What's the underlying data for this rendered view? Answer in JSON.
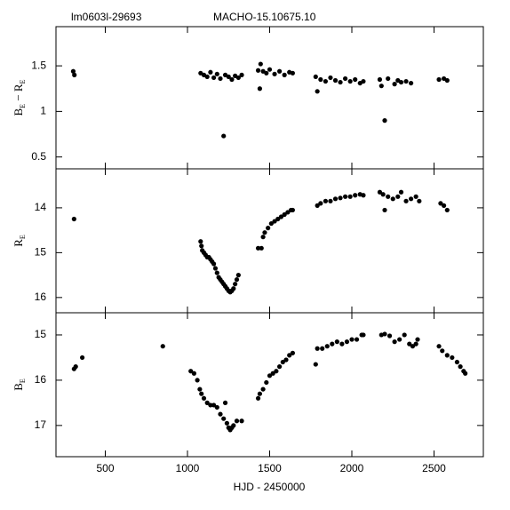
{
  "chart_data": [
    {
      "type": "scatter",
      "annotation": "lm0603l-29693",
      "title": "MACHO-15.10675.10",
      "ylabel": [
        "B",
        "E",
        " − R",
        "E"
      ],
      "xlim": [
        200,
        2800
      ],
      "xticks": [
        500,
        1000,
        1500,
        2000,
        2500
      ],
      "xtick_labels": false,
      "ylim": [
        0.37,
        1.93
      ],
      "yticks": [
        0.5,
        1,
        1.5
      ],
      "grid": false,
      "color": "#000000",
      "x": [
        305,
        312,
        1080,
        1100,
        1120,
        1140,
        1160,
        1180,
        1200,
        1220,
        1230,
        1250,
        1270,
        1290,
        1310,
        1330,
        1430,
        1440,
        1445,
        1460,
        1480,
        1500,
        1530,
        1560,
        1590,
        1620,
        1640,
        1780,
        1790,
        1810,
        1840,
        1870,
        1900,
        1930,
        1960,
        1990,
        2020,
        2050,
        2070,
        2170,
        2180,
        2200,
        2220,
        2260,
        2280,
        2300,
        2330,
        2360,
        2530,
        2560,
        2580
      ],
      "values": [
        1.44,
        1.4,
        1.42,
        1.4,
        1.38,
        1.43,
        1.37,
        1.41,
        1.36,
        0.73,
        1.4,
        1.38,
        1.35,
        1.39,
        1.37,
        1.4,
        1.45,
        1.25,
        1.52,
        1.44,
        1.42,
        1.46,
        1.41,
        1.44,
        1.4,
        1.43,
        1.42,
        1.38,
        1.22,
        1.35,
        1.33,
        1.37,
        1.34,
        1.32,
        1.36,
        1.33,
        1.35,
        1.31,
        1.33,
        1.35,
        1.28,
        0.9,
        1.36,
        1.3,
        1.34,
        1.32,
        1.33,
        1.31,
        1.35,
        1.36,
        1.34
      ]
    },
    {
      "type": "scatter",
      "ylabel": [
        "R",
        "E"
      ],
      "xlim": [
        200,
        2800
      ],
      "xticks": [
        500,
        1000,
        1500,
        2000,
        2500
      ],
      "xtick_labels": false,
      "ylim": [
        16.34,
        13.13
      ],
      "yticks": [
        14,
        15,
        16
      ],
      "grid": false,
      "color": "#000000",
      "x": [
        310,
        1080,
        1085,
        1090,
        1100,
        1110,
        1120,
        1130,
        1140,
        1150,
        1160,
        1170,
        1180,
        1190,
        1200,
        1210,
        1220,
        1230,
        1240,
        1250,
        1260,
        1270,
        1280,
        1290,
        1300,
        1310,
        1430,
        1450,
        1460,
        1470,
        1490,
        1510,
        1530,
        1550,
        1570,
        1590,
        1610,
        1630,
        1640,
        1790,
        1810,
        1840,
        1870,
        1900,
        1930,
        1960,
        1990,
        2020,
        2050,
        2070,
        2170,
        2190,
        2200,
        2220,
        2250,
        2280,
        2300,
        2330,
        2360,
        2390,
        2410,
        2540,
        2560,
        2580
      ],
      "values": [
        14.25,
        14.75,
        14.85,
        14.95,
        15.0,
        15.05,
        15.1,
        15.1,
        15.15,
        15.2,
        15.25,
        15.35,
        15.45,
        15.55,
        15.6,
        15.65,
        15.7,
        15.75,
        15.8,
        15.85,
        15.88,
        15.85,
        15.8,
        15.7,
        15.6,
        15.5,
        14.9,
        14.9,
        14.65,
        14.55,
        14.45,
        14.35,
        14.3,
        14.25,
        14.2,
        14.15,
        14.1,
        14.05,
        14.05,
        13.95,
        13.9,
        13.85,
        13.85,
        13.8,
        13.78,
        13.75,
        13.75,
        13.72,
        13.7,
        13.72,
        13.65,
        13.7,
        14.05,
        13.75,
        13.8,
        13.75,
        13.65,
        13.85,
        13.8,
        13.75,
        13.85,
        13.9,
        13.95,
        14.05
      ]
    },
    {
      "type": "scatter",
      "ylabel": [
        "B",
        "E"
      ],
      "xlabel": "HJD - 2450000",
      "xlim": [
        200,
        2800
      ],
      "xticks": [
        500,
        1000,
        1500,
        2000,
        2500
      ],
      "xtick_labels": true,
      "ylim": [
        17.69,
        14.51
      ],
      "yticks": [
        15,
        16,
        17
      ],
      "grid": false,
      "color": "#000000",
      "x": [
        310,
        320,
        360,
        850,
        1020,
        1040,
        1060,
        1075,
        1085,
        1100,
        1120,
        1140,
        1160,
        1180,
        1200,
        1220,
        1230,
        1240,
        1250,
        1260,
        1270,
        1280,
        1300,
        1330,
        1430,
        1440,
        1460,
        1480,
        1500,
        1520,
        1540,
        1560,
        1580,
        1600,
        1620,
        1640,
        1780,
        1790,
        1820,
        1850,
        1880,
        1910,
        1940,
        1970,
        2000,
        2030,
        2060,
        2070,
        2180,
        2200,
        2230,
        2260,
        2290,
        2320,
        2350,
        2370,
        2390,
        2400,
        2530,
        2550,
        2580,
        2610,
        2640,
        2660,
        2680,
        2690
      ],
      "values": [
        15.75,
        15.7,
        15.5,
        15.25,
        15.8,
        15.85,
        16.0,
        16.2,
        16.3,
        16.4,
        16.5,
        16.55,
        16.55,
        16.6,
        16.75,
        16.85,
        16.5,
        16.95,
        17.05,
        17.1,
        17.05,
        17.0,
        16.9,
        16.9,
        16.4,
        16.3,
        16.2,
        16.05,
        15.9,
        15.85,
        15.8,
        15.7,
        15.6,
        15.55,
        15.45,
        15.4,
        15.65,
        15.3,
        15.3,
        15.25,
        15.2,
        15.15,
        15.2,
        15.15,
        15.1,
        15.1,
        15.0,
        15.0,
        15.0,
        14.98,
        15.02,
        15.15,
        15.1,
        15.0,
        15.2,
        15.25,
        15.2,
        15.1,
        15.25,
        15.35,
        15.45,
        15.5,
        15.6,
        15.7,
        15.8,
        15.85
      ]
    }
  ]
}
